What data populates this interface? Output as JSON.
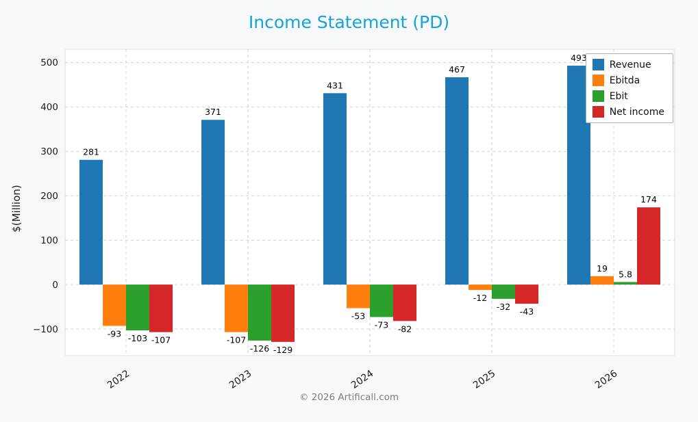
{
  "title": "Income Statement (PD)",
  "ylabel": "$(Million)",
  "footer": "© 2026 Artificall.com",
  "chart_data": {
    "type": "bar",
    "title": "Income Statement (PD)",
    "categories": [
      "2022",
      "2023",
      "2024",
      "2025",
      "2026"
    ],
    "series": [
      {
        "name": "Revenue",
        "color": "#1f77b4",
        "values": [
          281,
          371,
          431,
          467,
          493
        ]
      },
      {
        "name": "Ebitda",
        "color": "#ff7f0e",
        "values": [
          -93,
          -107,
          -53,
          -12,
          19
        ]
      },
      {
        "name": "Ebit",
        "color": "#2ca02c",
        "values": [
          -103,
          -126,
          -73,
          -32,
          5.8
        ]
      },
      {
        "name": "Net income",
        "color": "#d62728",
        "values": [
          -107,
          -129,
          -82,
          -43,
          174
        ]
      }
    ],
    "xlabel": "",
    "ylabel": "$(Million)",
    "yticks": [
      -100,
      0,
      100,
      200,
      300,
      400,
      500
    ],
    "ylim": [
      -160,
      530
    ],
    "grid": true,
    "grid_style": "dashed",
    "legend_position": "top-right",
    "background": "#f8f9fa",
    "plot_background": "#ffffff",
    "title_color": "#15a3dc"
  }
}
